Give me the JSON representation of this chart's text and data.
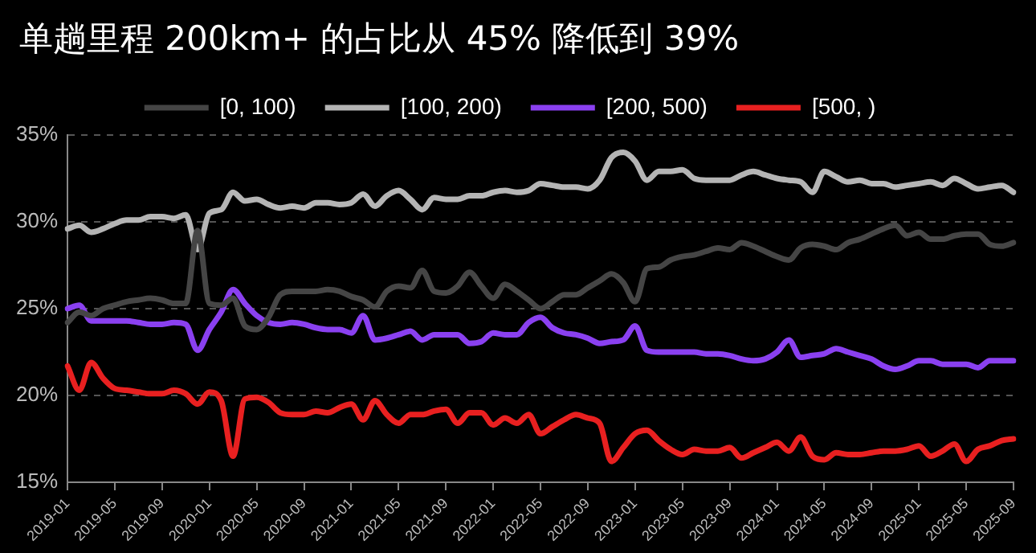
{
  "chart_data": {
    "type": "line",
    "title": "单趟里程 200km+ 的占比从 45% 降低到 39%",
    "categories": [
      "2019-01",
      null,
      null,
      null,
      "2019-05",
      null,
      null,
      null,
      "2019-09",
      null,
      null,
      null,
      "2020-01",
      null,
      null,
      null,
      "2020-05",
      null,
      null,
      null,
      "2020-09",
      null,
      null,
      null,
      "2021-01",
      null,
      null,
      null,
      "2021-05",
      null,
      null,
      null,
      "2021-09",
      null,
      null,
      null,
      "2022-01",
      null,
      null,
      null,
      "2022-05",
      null,
      null,
      null,
      "2022-09",
      null,
      null,
      null,
      "2023-01",
      null,
      null,
      null,
      "2023-05",
      null,
      null,
      null,
      "2023-09",
      null,
      null,
      null,
      "2024-01",
      null,
      null,
      null,
      "2024-05",
      null,
      null,
      null,
      "2024-09",
      null,
      null,
      null,
      "2025-01",
      null,
      null,
      null,
      "2025-05",
      null,
      null,
      null,
      "2025-09"
    ],
    "series": [
      {
        "name": "[0, 100)",
        "color": "#454545",
        "values": [
          24.2,
          24.8,
          24.6,
          25.0,
          25.2,
          25.4,
          25.5,
          25.6,
          25.5,
          25.3,
          25.3,
          29.5,
          25.3,
          25.2,
          25.6,
          24.0,
          23.8,
          24.5,
          25.8,
          26.0,
          26.0,
          26.0,
          26.1,
          26.0,
          25.7,
          25.5,
          25.1,
          26.0,
          26.3,
          26.2,
          27.2,
          26.0,
          25.9,
          26.3,
          27.1,
          26.3,
          25.6,
          26.4,
          26.0,
          25.5,
          25.0,
          25.4,
          25.8,
          25.8,
          26.2,
          26.6,
          27.0,
          26.5,
          25.4,
          27.3,
          27.4,
          27.8,
          28.0,
          28.1,
          28.3,
          28.5,
          28.4,
          28.8,
          28.6,
          28.3,
          28.0,
          27.8,
          28.5,
          28.7,
          28.6,
          28.4,
          28.8,
          29.0,
          29.3,
          29.6,
          29.8,
          29.2,
          29.4,
          29.0,
          29.0,
          29.2,
          29.3,
          29.3,
          28.7,
          28.6,
          28.8
        ]
      },
      {
        "name": "[100, 200)",
        "color": "#b4b4b4",
        "values": [
          29.6,
          29.8,
          29.4,
          29.6,
          29.9,
          30.1,
          30.1,
          30.3,
          30.3,
          30.2,
          30.4,
          28.4,
          30.5,
          30.7,
          31.7,
          31.2,
          31.3,
          31.0,
          30.8,
          30.9,
          30.8,
          31.1,
          31.1,
          31.0,
          31.1,
          31.6,
          30.9,
          31.5,
          31.8,
          31.3,
          30.7,
          31.4,
          31.3,
          31.3,
          31.5,
          31.5,
          31.7,
          31.8,
          31.7,
          31.8,
          32.2,
          32.1,
          32.0,
          32.0,
          31.9,
          32.4,
          33.7,
          34.0,
          33.5,
          32.4,
          32.9,
          32.9,
          33.0,
          32.5,
          32.4,
          32.4,
          32.4,
          32.7,
          32.9,
          32.7,
          32.5,
          32.4,
          32.3,
          31.7,
          32.9,
          32.6,
          32.3,
          32.4,
          32.2,
          32.2,
          32.0,
          32.1,
          32.2,
          32.3,
          32.1,
          32.5,
          32.2,
          31.9,
          32.0,
          32.1,
          31.7
        ]
      },
      {
        "name": "[200, 500)",
        "color": "#8a40f0",
        "values": [
          25.0,
          25.2,
          24.3,
          24.3,
          24.3,
          24.3,
          24.2,
          24.1,
          24.1,
          24.2,
          24.1,
          22.6,
          23.8,
          24.8,
          26.1,
          25.3,
          24.6,
          24.2,
          24.1,
          24.2,
          24.1,
          23.9,
          23.8,
          23.8,
          23.6,
          24.6,
          23.2,
          23.3,
          23.5,
          23.7,
          23.2,
          23.5,
          23.5,
          23.5,
          23.0,
          23.1,
          23.6,
          23.5,
          23.5,
          24.2,
          24.5,
          23.9,
          23.6,
          23.5,
          23.3,
          23.0,
          23.1,
          23.2,
          24.0,
          22.6,
          22.5,
          22.5,
          22.5,
          22.5,
          22.4,
          22.4,
          22.3,
          22.1,
          22.0,
          22.1,
          22.5,
          23.2,
          22.2,
          22.3,
          22.4,
          22.7,
          22.5,
          22.3,
          22.1,
          21.7,
          21.5,
          21.7,
          22.0,
          22.0,
          21.8,
          21.8,
          21.8,
          21.6,
          22.0,
          22.0,
          22.0
        ]
      },
      {
        "name": "[500, )",
        "color": "#e82020",
        "values": [
          21.7,
          20.3,
          21.9,
          21.0,
          20.4,
          20.3,
          20.2,
          20.1,
          20.1,
          20.3,
          20.1,
          19.5,
          20.2,
          19.7,
          16.5,
          19.8,
          19.9,
          19.6,
          19.0,
          18.9,
          18.9,
          19.1,
          19.0,
          19.3,
          19.5,
          18.6,
          19.7,
          18.9,
          18.4,
          18.9,
          18.9,
          19.1,
          19.2,
          18.4,
          19.0,
          19.0,
          18.3,
          18.7,
          18.4,
          18.9,
          17.8,
          18.2,
          18.6,
          18.9,
          18.7,
          18.4,
          16.2,
          17.0,
          17.8,
          18.0,
          17.4,
          16.9,
          16.6,
          16.9,
          16.8,
          16.8,
          17.0,
          16.4,
          16.7,
          17.0,
          17.3,
          16.8,
          17.6,
          16.5,
          16.3,
          16.7,
          16.6,
          16.6,
          16.7,
          16.8,
          16.8,
          16.9,
          17.1,
          16.5,
          16.8,
          17.2,
          16.2,
          16.9,
          17.1,
          17.4,
          17.5
        ]
      }
    ],
    "ylim": [
      15,
      35
    ],
    "yticks": [
      {
        "value": 15,
        "label": "15%"
      },
      {
        "value": 20,
        "label": "20%"
      },
      {
        "value": 25,
        "label": "25%"
      },
      {
        "value": 30,
        "label": "30%"
      },
      {
        "value": 35,
        "label": "35%"
      }
    ],
    "grid": "y",
    "legend": "top",
    "marker": "none",
    "line_style": "solid"
  }
}
